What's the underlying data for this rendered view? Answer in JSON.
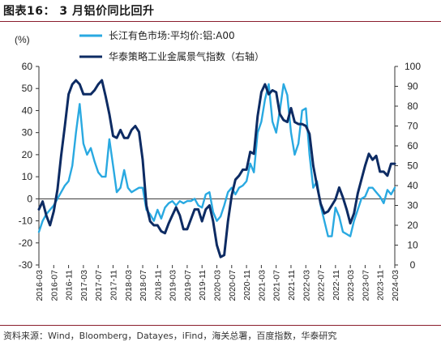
{
  "header": {
    "title": "图表16： 3 月铝价同比回升"
  },
  "footer": {
    "source": "资料来源：Wind，Bloomberg，Datayes，iFind，海关总署，百度指数，华泰研究"
  },
  "chart_data": {
    "type": "line",
    "y_unit_label": "(%)",
    "ylim": [
      -30,
      60
    ],
    "yticks": [
      -30,
      -20,
      -10,
      0,
      10,
      20,
      30,
      40,
      50,
      60
    ],
    "y2lim": [
      0,
      100
    ],
    "y2ticks": [
      0,
      10,
      20,
      30,
      40,
      50,
      60,
      70,
      80,
      90,
      100
    ],
    "x_categories": [
      "2016-03",
      "2016-07",
      "2016-11",
      "2017-03",
      "2017-07",
      "2017-11",
      "2018-03",
      "2018-07",
      "2018-11",
      "2019-03",
      "2019-07",
      "2019-11",
      "2020-03",
      "2020-07",
      "2020-11",
      "2021-03",
      "2021-07",
      "2021-11",
      "2022-03",
      "2022-07",
      "2022-11",
      "2023-03",
      "2023-07",
      "2023-11",
      "2024-03"
    ],
    "x_start": "2016-03",
    "x_end": "2024-03",
    "grid": false,
    "legend_position": "top",
    "series": [
      {
        "name": "长江有色市场:平均价:铝:A00",
        "axis": "left",
        "color": "#29a9e1",
        "points": [
          [
            "2016-03",
            -15
          ],
          [
            "2016-04",
            -10
          ],
          [
            "2016-05",
            -7
          ],
          [
            "2016-06",
            -5
          ],
          [
            "2016-07",
            -3
          ],
          [
            "2016-08",
            0
          ],
          [
            "2016-09",
            3
          ],
          [
            "2016-10",
            6
          ],
          [
            "2016-11",
            8
          ],
          [
            "2016-12",
            15
          ],
          [
            "2017-01",
            30
          ],
          [
            "2017-02",
            43
          ],
          [
            "2017-03",
            25
          ],
          [
            "2017-04",
            20
          ],
          [
            "2017-05",
            23
          ],
          [
            "2017-06",
            17
          ],
          [
            "2017-07",
            12
          ],
          [
            "2017-08",
            10
          ],
          [
            "2017-09",
            10
          ],
          [
            "2017-10",
            27
          ],
          [
            "2017-11",
            15
          ],
          [
            "2017-12",
            3
          ],
          [
            "2018-01",
            5
          ],
          [
            "2018-02",
            13
          ],
          [
            "2018-03",
            5
          ],
          [
            "2018-04",
            3
          ],
          [
            "2018-05",
            4
          ],
          [
            "2018-06",
            5
          ],
          [
            "2018-07",
            5
          ],
          [
            "2018-08",
            -5
          ],
          [
            "2018-09",
            -7
          ],
          [
            "2018-10",
            -10
          ],
          [
            "2018-11",
            -5
          ],
          [
            "2018-12",
            -9
          ],
          [
            "2019-01",
            -4
          ],
          [
            "2019-02",
            -2
          ],
          [
            "2019-03",
            -1
          ],
          [
            "2019-04",
            -3
          ],
          [
            "2019-05",
            -1
          ],
          [
            "2019-06",
            -2
          ],
          [
            "2019-07",
            -1
          ],
          [
            "2019-08",
            -1
          ],
          [
            "2019-09",
            0
          ],
          [
            "2019-10",
            -3
          ],
          [
            "2019-11",
            -4
          ],
          [
            "2019-12",
            2
          ],
          [
            "2020-01",
            3
          ],
          [
            "2020-02",
            -6
          ],
          [
            "2020-03",
            -10
          ],
          [
            "2020-04",
            -8
          ],
          [
            "2020-05",
            -3
          ],
          [
            "2020-06",
            3
          ],
          [
            "2020-07",
            5
          ],
          [
            "2020-08",
            2
          ],
          [
            "2020-09",
            5
          ],
          [
            "2020-10",
            6
          ],
          [
            "2020-11",
            8
          ],
          [
            "2020-12",
            16
          ],
          [
            "2021-01",
            12
          ],
          [
            "2021-02",
            30
          ],
          [
            "2021-03",
            35
          ],
          [
            "2021-04",
            45
          ],
          [
            "2021-05",
            52
          ],
          [
            "2021-06",
            35
          ],
          [
            "2021-07",
            30
          ],
          [
            "2021-08",
            40
          ],
          [
            "2021-09",
            52
          ],
          [
            "2021-10",
            47
          ],
          [
            "2021-11",
            30
          ],
          [
            "2021-12",
            20
          ],
          [
            "2022-01",
            25
          ],
          [
            "2022-02",
            40
          ],
          [
            "2022-03",
            41
          ],
          [
            "2022-04",
            20
          ],
          [
            "2022-05",
            5
          ],
          [
            "2022-06",
            8
          ],
          [
            "2022-07",
            -3
          ],
          [
            "2022-08",
            -10
          ],
          [
            "2022-09",
            -17
          ],
          [
            "2022-10",
            -17
          ],
          [
            "2022-11",
            -4
          ],
          [
            "2022-12",
            -8
          ],
          [
            "2023-01",
            -15
          ],
          [
            "2023-02",
            -16
          ],
          [
            "2023-03",
            -17
          ],
          [
            "2023-04",
            -10
          ],
          [
            "2023-05",
            -5
          ],
          [
            "2023-06",
            0
          ],
          [
            "2023-07",
            1
          ],
          [
            "2023-08",
            5
          ],
          [
            "2023-09",
            5
          ],
          [
            "2023-10",
            3
          ],
          [
            "2023-11",
            1
          ],
          [
            "2023-12",
            -2
          ],
          [
            "2024-01",
            4
          ],
          [
            "2024-02",
            2
          ],
          [
            "2024-03",
            5
          ]
        ]
      },
      {
        "name": "华泰策略工业金属景气指数（右轴）",
        "axis": "right",
        "color": "#0d2b63",
        "points": [
          [
            "2016-03",
            28
          ],
          [
            "2016-04",
            32
          ],
          [
            "2016-05",
            25
          ],
          [
            "2016-06",
            20
          ],
          [
            "2016-07",
            27
          ],
          [
            "2016-08",
            38
          ],
          [
            "2016-09",
            55
          ],
          [
            "2016-10",
            70
          ],
          [
            "2016-11",
            86
          ],
          [
            "2016-12",
            91
          ],
          [
            "2017-01",
            93
          ],
          [
            "2017-02",
            91
          ],
          [
            "2017-03",
            86
          ],
          [
            "2017-04",
            86
          ],
          [
            "2017-05",
            86
          ],
          [
            "2017-06",
            88
          ],
          [
            "2017-07",
            91
          ],
          [
            "2017-08",
            93
          ],
          [
            "2017-09",
            85
          ],
          [
            "2017-10",
            76
          ],
          [
            "2017-11",
            65
          ],
          [
            "2017-12",
            64
          ],
          [
            "2018-01",
            68
          ],
          [
            "2018-02",
            64
          ],
          [
            "2018-03",
            64
          ],
          [
            "2018-04",
            68
          ],
          [
            "2018-05",
            70
          ],
          [
            "2018-06",
            67
          ],
          [
            "2018-07",
            53
          ],
          [
            "2018-08",
            30
          ],
          [
            "2018-09",
            22
          ],
          [
            "2018-10",
            20
          ],
          [
            "2018-11",
            20
          ],
          [
            "2018-12",
            17
          ],
          [
            "2019-01",
            16
          ],
          [
            "2019-02",
            21
          ],
          [
            "2019-03",
            25
          ],
          [
            "2019-04",
            29
          ],
          [
            "2019-05",
            25
          ],
          [
            "2019-06",
            18
          ],
          [
            "2019-07",
            18
          ],
          [
            "2019-08",
            23
          ],
          [
            "2019-09",
            28
          ],
          [
            "2019-10",
            28
          ],
          [
            "2019-11",
            22
          ],
          [
            "2019-12",
            28
          ],
          [
            "2020-01",
            30
          ],
          [
            "2020-02",
            22
          ],
          [
            "2020-03",
            10
          ],
          [
            "2020-04",
            4
          ],
          [
            "2020-05",
            5
          ],
          [
            "2020-06",
            22
          ],
          [
            "2020-07",
            35
          ],
          [
            "2020-08",
            43
          ],
          [
            "2020-09",
            45
          ],
          [
            "2020-10",
            48
          ],
          [
            "2020-11",
            48
          ],
          [
            "2020-12",
            57
          ],
          [
            "2021-01",
            56
          ],
          [
            "2021-02",
            75
          ],
          [
            "2021-03",
            87
          ],
          [
            "2021-04",
            91
          ],
          [
            "2021-05",
            86
          ],
          [
            "2021-06",
            88
          ],
          [
            "2021-07",
            87
          ],
          [
            "2021-08",
            76
          ],
          [
            "2021-09",
            73
          ],
          [
            "2021-10",
            72
          ],
          [
            "2021-11",
            79
          ],
          [
            "2021-12",
            72
          ],
          [
            "2022-01",
            71
          ],
          [
            "2022-02",
            71
          ],
          [
            "2022-03",
            70
          ],
          [
            "2022-04",
            66
          ],
          [
            "2022-05",
            50
          ],
          [
            "2022-06",
            40
          ],
          [
            "2022-07",
            31
          ],
          [
            "2022-08",
            26
          ],
          [
            "2022-09",
            27
          ],
          [
            "2022-10",
            30
          ],
          [
            "2022-11",
            33
          ],
          [
            "2022-12",
            39
          ],
          [
            "2023-01",
            34
          ],
          [
            "2023-02",
            28
          ],
          [
            "2023-03",
            21
          ],
          [
            "2023-04",
            26
          ],
          [
            "2023-05",
            36
          ],
          [
            "2023-06",
            43
          ],
          [
            "2023-07",
            50
          ],
          [
            "2023-08",
            56
          ],
          [
            "2023-09",
            53
          ],
          [
            "2023-10",
            55
          ],
          [
            "2023-11",
            47
          ],
          [
            "2023-12",
            47
          ],
          [
            "2024-01",
            45
          ],
          [
            "2024-02",
            51
          ],
          [
            "2024-03",
            51
          ]
        ]
      }
    ]
  }
}
